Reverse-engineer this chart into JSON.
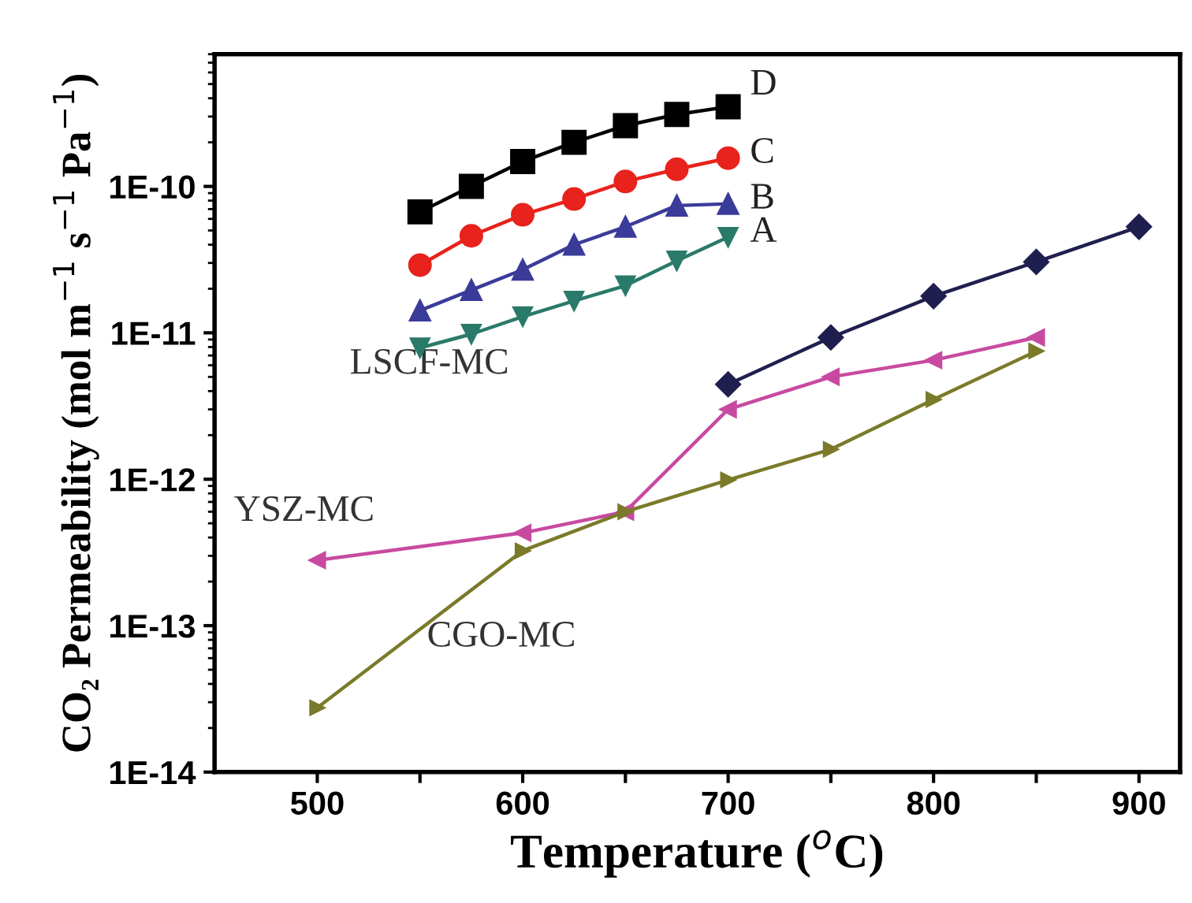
{
  "chart_data": {
    "type": "line",
    "xlabel": "Temperature ($^{o}$C)",
    "ylabel": "CO₂ Permeability (mol m$^{−1}$ s$^{−1}$ Pa$^{−1}$)",
    "log": "y",
    "xlim": [
      450,
      920
    ],
    "ylim": [
      1e-14,
      8e-10
    ],
    "xticks": [
      500,
      {
        "value": 550,
        "label": null
      },
      600,
      {
        "value": 650,
        "label": null
      },
      700,
      {
        "value": 750,
        "label": null
      },
      800,
      {
        "value": 850,
        "label": null
      },
      900
    ],
    "yticks": [
      {
        "value": 1e-14,
        "label": "1E-14"
      },
      {
        "value": 1e-13,
        "label": "1E-13"
      },
      {
        "value": 1e-12,
        "label": "1E-12"
      },
      {
        "value": 1e-11,
        "label": "1E-11"
      },
      {
        "value": 1e-10,
        "label": "1E-10"
      }
    ],
    "grid": false,
    "legend": false,
    "annotations": [
      "LSCF-MC",
      "YSZ-MC",
      "CGO-MC"
    ],
    "series": [
      {
        "name": "D",
        "color": "#000000",
        "marker": "square",
        "x": [
          550,
          575,
          600,
          625,
          650,
          675,
          700
        ],
        "values": [
          6.7e-11,
          1e-10,
          1.48e-10,
          2e-10,
          2.6e-10,
          3.1e-10,
          3.5e-10
        ]
      },
      {
        "name": "C",
        "color": "#e8221c",
        "marker": "circle",
        "x": [
          550,
          575,
          600,
          625,
          650,
          675,
          700
        ],
        "values": [
          2.9e-11,
          4.6e-11,
          6.4e-11,
          8.2e-11,
          1.08e-10,
          1.31e-10,
          1.56e-10
        ]
      },
      {
        "name": "B",
        "color": "#3b3b9a",
        "marker": "triangle",
        "x": [
          550,
          575,
          600,
          625,
          650,
          675,
          700
        ],
        "values": [
          1.42e-11,
          1.96e-11,
          2.7e-11,
          4e-11,
          5.3e-11,
          7.4e-11,
          7.6e-11
        ]
      },
      {
        "name": "A",
        "color": "#2a7a6a",
        "marker": "triangle_down",
        "x": [
          550,
          575,
          600,
          625,
          650,
          675,
          700
        ],
        "values": [
          7.9e-12,
          9.8e-12,
          1.29e-11,
          1.65e-11,
          2.1e-11,
          3.1e-11,
          4.5e-11
        ]
      },
      {
        "color": "#1f1f4f",
        "marker": "diamond",
        "x": [
          700,
          750,
          800,
          850,
          900
        ],
        "values": [
          4.45e-12,
          9.3e-12,
          1.78e-11,
          3.05e-11,
          5.3e-11
        ]
      },
      {
        "color": "#c84aa0",
        "marker": "triangle_left",
        "x": [
          500,
          600,
          650,
          700,
          750,
          800,
          850
        ],
        "values": [
          2.8e-13,
          4.3e-13,
          6e-13,
          3e-12,
          5e-12,
          6.5e-12,
          9.3e-12
        ]
      },
      {
        "color": "#7a7a2a",
        "marker": "triangle_right",
        "x": [
          500,
          600,
          650,
          700,
          750,
          800,
          850
        ],
        "values": [
          2.75e-14,
          3.25e-13,
          6e-13,
          9.9e-13,
          1.6e-12,
          3.5e-12,
          7.5e-12
        ]
      }
    ]
  }
}
